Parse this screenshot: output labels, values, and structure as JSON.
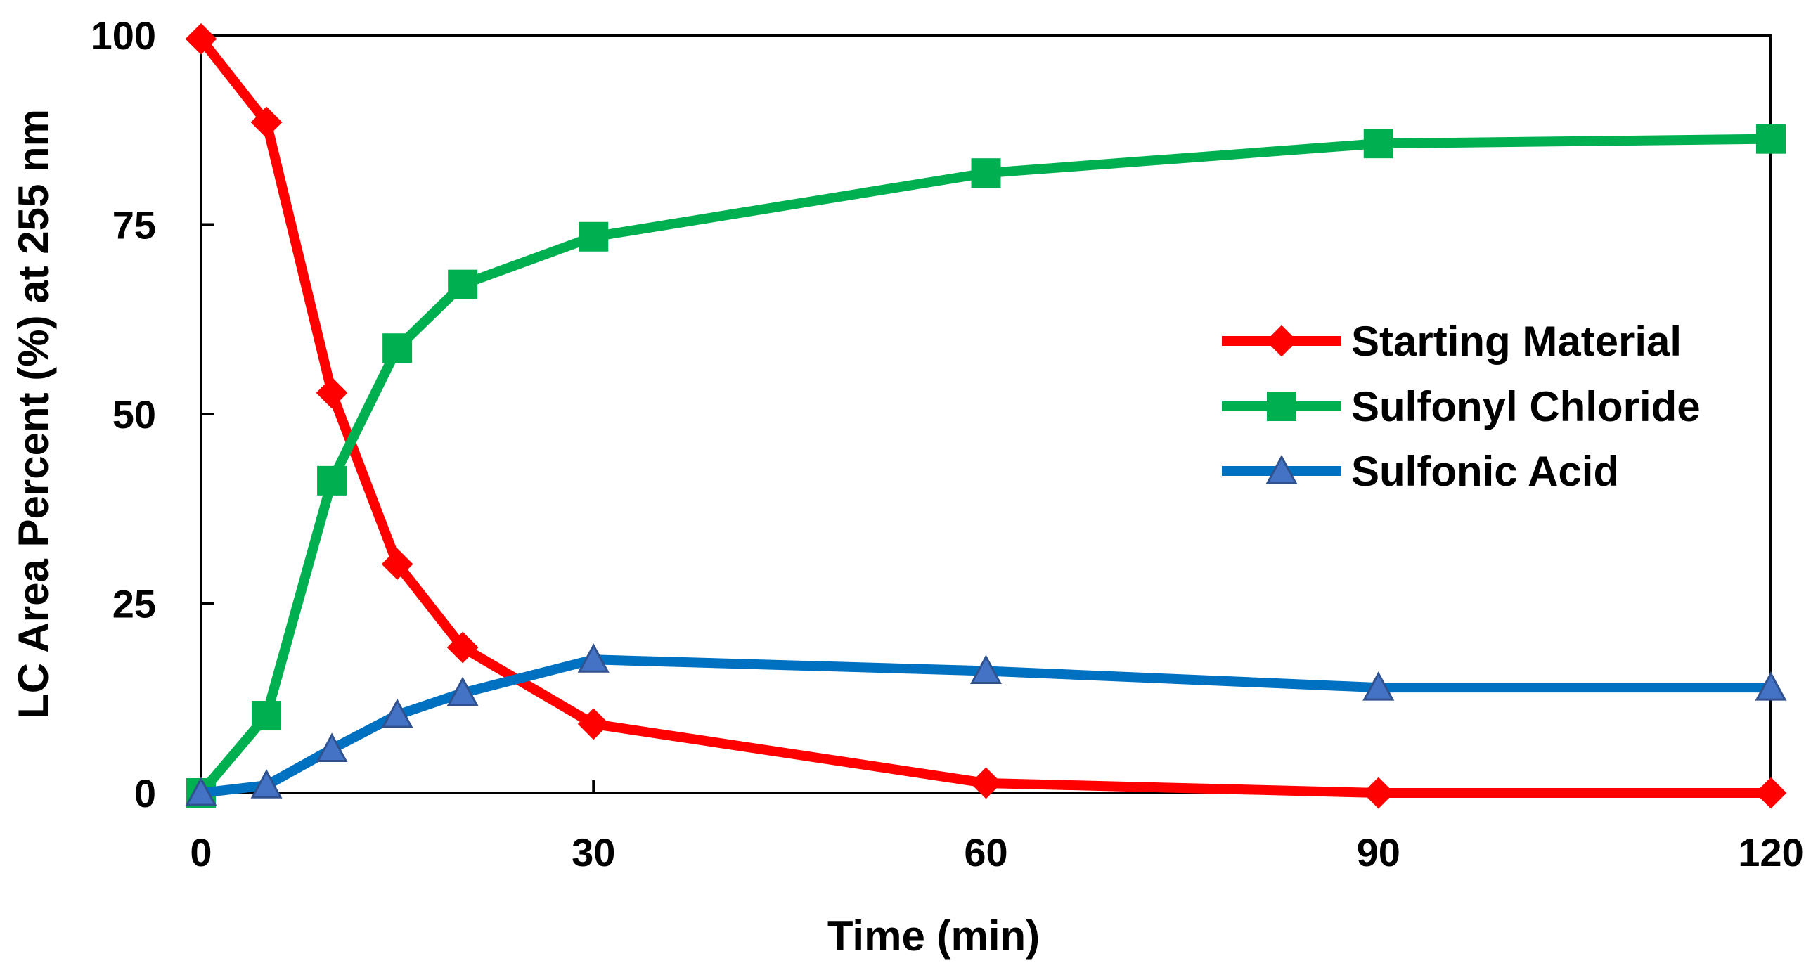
{
  "chart_data": {
    "type": "line",
    "title": "",
    "xlabel": "Time (min)",
    "ylabel": "LC Area Percent (%) at 255 nm",
    "xlim": [
      0,
      120
    ],
    "ylim": [
      0,
      100
    ],
    "xticks": [
      0,
      30,
      60,
      90,
      120
    ],
    "xtick_labels": [
      "0",
      "30",
      "60",
      "90",
      "120"
    ],
    "yticks": [
      0,
      25,
      50,
      75,
      100
    ],
    "ytick_labels": [
      "0",
      "25",
      "50",
      "75",
      "100"
    ],
    "grid": false,
    "legend_position": "center-right",
    "x": [
      0,
      5,
      10,
      15,
      20,
      30,
      60,
      90,
      120
    ],
    "series": [
      {
        "name": "Starting Material",
        "color": "#ff0000",
        "marker": "diamond",
        "values": [
          99.5,
          88.5,
          52.8,
          30.2,
          19.2,
          9.1,
          1.3,
          0.0,
          0.0
        ]
      },
      {
        "name": "Sulfonyl Chloride",
        "color": "#00b050",
        "marker": "square",
        "values": [
          0.0,
          10.2,
          41.2,
          58.7,
          67.1,
          73.4,
          81.8,
          85.7,
          86.3
        ]
      },
      {
        "name": "Sulfonic Acid",
        "color": "#0070c0",
        "marker": "triangle",
        "values": [
          0.0,
          1.0,
          5.8,
          10.3,
          13.2,
          17.6,
          16.1,
          13.9,
          13.9
        ]
      }
    ]
  }
}
